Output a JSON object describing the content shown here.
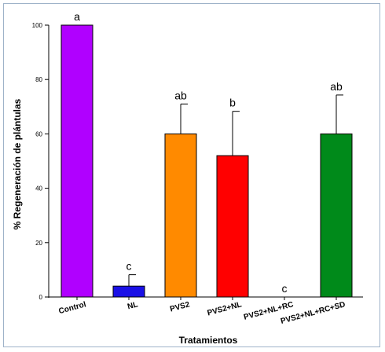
{
  "chart_data": {
    "type": "bar",
    "title": "",
    "xlabel": "Tratamientos",
    "ylabel": "% Regeneración de plántulas",
    "ylim": [
      0,
      100
    ],
    "yticks": [
      0,
      20,
      40,
      60,
      80,
      100
    ],
    "grid": false,
    "categories": [
      "Control",
      "NL",
      "PVS2",
      "PVS2+NL",
      "PVS2+NL+RC",
      "PVS2+NL+RC+SD"
    ],
    "values": [
      100,
      4,
      60,
      52,
      0,
      60
    ],
    "errors": [
      0,
      4.2,
      11,
      16.3,
      0,
      14.3
    ],
    "significance": [
      "a",
      "c",
      "ab",
      "b",
      "c",
      "ab"
    ],
    "colors": [
      "#b000ff",
      "#1a10e6",
      "#ff8a00",
      "#ff0000",
      "#ffffff",
      "#008a1a"
    ]
  }
}
